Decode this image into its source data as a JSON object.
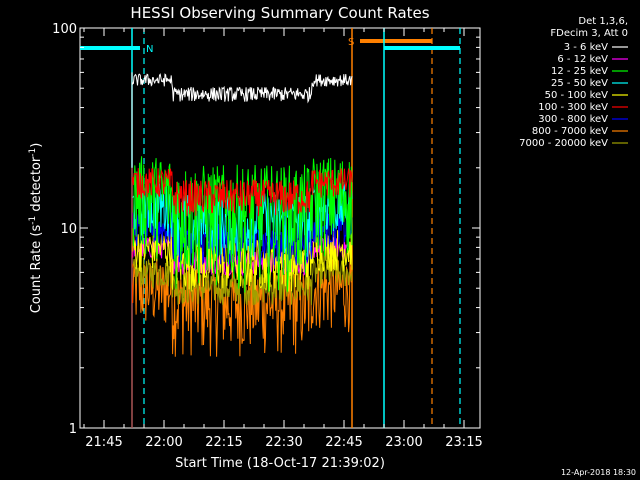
{
  "chart_data": {
    "type": "line",
    "title": "HESSI Observing Summary Count Rates",
    "xlabel": "Start Time (18-Oct-17 21:39:02)",
    "ylabel_main": "Count Rate (s",
    "ylabel_sup1": "-1",
    "ylabel_mid": " detector",
    "ylabel_sup2": "-1",
    "ylabel_end": ")",
    "y_scale": "log",
    "ylim": [
      1,
      100
    ],
    "xlim": [
      "21:39",
      "23:19"
    ],
    "x_ticks": [
      "21:45",
      "22:00",
      "22:15",
      "22:30",
      "22:45",
      "23:00",
      "23:15"
    ],
    "y_ticks": [
      "1",
      "10",
      "100"
    ],
    "legend_header": [
      "Det 1,3,6,",
      "FDecim 3, Att 0"
    ],
    "legend_placement": "top-right outside plot",
    "series": [
      {
        "name": "3 - 6 keV",
        "color": "#ffffff",
        "level": 55,
        "noise": 4
      },
      {
        "name": "6 - 12 keV",
        "color": "#ff00ff",
        "level": 8,
        "noise": 1
      },
      {
        "name": "12 - 25 keV",
        "color": "#00ff00",
        "level": 15,
        "noise": 8
      },
      {
        "name": "25 - 50 keV",
        "color": "#00ffff",
        "level": 13,
        "noise": 4
      },
      {
        "name": "50 - 100 keV",
        "color": "#ffff00",
        "level": 8,
        "noise": 2
      },
      {
        "name": "100 - 300 keV",
        "color": "#ff0000",
        "level": 17,
        "noise": 3
      },
      {
        "name": "300 - 800 keV",
        "color": "#0000ff",
        "level": 10,
        "noise": 2
      },
      {
        "name": "800 - 7000 keV",
        "color": "#ff8000",
        "level": 5,
        "noise": 2
      },
      {
        "name": "7000 - 20000 keV",
        "color": "#a0a000",
        "level": 6,
        "noise": 1
      }
    ],
    "data_interval": [
      "21:52",
      "22:47"
    ],
    "annotations": [
      {
        "label": "N",
        "color": "#00ffff",
        "start": "21:39",
        "end": "21:54",
        "line": "21:52",
        "dashed_line": "21:55"
      },
      {
        "label": "S",
        "color": "#ff8000",
        "start": "22:49",
        "end": "23:07",
        "line": "22:47",
        "dashed_line": "23:07"
      },
      {
        "label": "",
        "color": "#00ffff",
        "start": "22:55",
        "end": "23:14",
        "line": "22:55",
        "dashed_line": "23:14"
      }
    ],
    "grid": false
  },
  "footer_timestamp": "12-Apr-2018 18:30"
}
